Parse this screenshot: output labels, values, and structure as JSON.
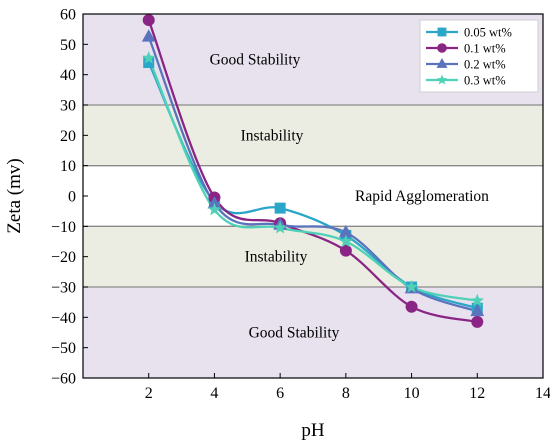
{
  "chart_data": {
    "type": "line",
    "xlabel": "pH",
    "ylabel": "Zeta (mv)",
    "xlim": [
      0,
      14
    ],
    "ylim": [
      -60,
      60
    ],
    "xticks": [
      2,
      4,
      6,
      8,
      10,
      12,
      14
    ],
    "yticks": [
      60,
      50,
      40,
      30,
      20,
      10,
      0,
      -10,
      -20,
      -30,
      -40,
      -50,
      -60
    ],
    "x": [
      2,
      4,
      6,
      8,
      10,
      12
    ],
    "bands": [
      {
        "from": 30,
        "to": 60,
        "label": "Good Stability",
        "color": "#e8e2ee"
      },
      {
        "from": 10,
        "to": 30,
        "label": "Instability",
        "color": "#ecede2"
      },
      {
        "from": -10,
        "to": 10,
        "label": "Rapid Agglomeration",
        "color": "#ffffff"
      },
      {
        "from": -30,
        "to": -10,
        "label": "Instability",
        "color": "#ecede2"
      },
      {
        "from": -60,
        "to": -30,
        "label": "Good Stability",
        "color": "#e8e2ee"
      }
    ],
    "series": [
      {
        "name": "0.05 wt%",
        "marker": "square",
        "color": "#2aa6c8",
        "values": [
          44,
          -2,
          -4,
          -13,
          -30,
          -37
        ]
      },
      {
        "name": "0.1 wt%",
        "marker": "circle",
        "color": "#8a2585",
        "values": [
          58,
          -0.5,
          -9,
          -18,
          -36.5,
          -41.5
        ]
      },
      {
        "name": "0.2 wt%",
        "marker": "triangle",
        "color": "#5b73bd",
        "values": [
          52.5,
          -2.5,
          -9.5,
          -12,
          -30.5,
          -38
        ]
      },
      {
        "name": "0.3 wt%",
        "marker": "star",
        "color": "#4fd1b8",
        "values": [
          45.5,
          -4.5,
          -10.5,
          -15,
          -30,
          -34.5
        ]
      }
    ],
    "legend_position": "top-right",
    "grid": false
  }
}
